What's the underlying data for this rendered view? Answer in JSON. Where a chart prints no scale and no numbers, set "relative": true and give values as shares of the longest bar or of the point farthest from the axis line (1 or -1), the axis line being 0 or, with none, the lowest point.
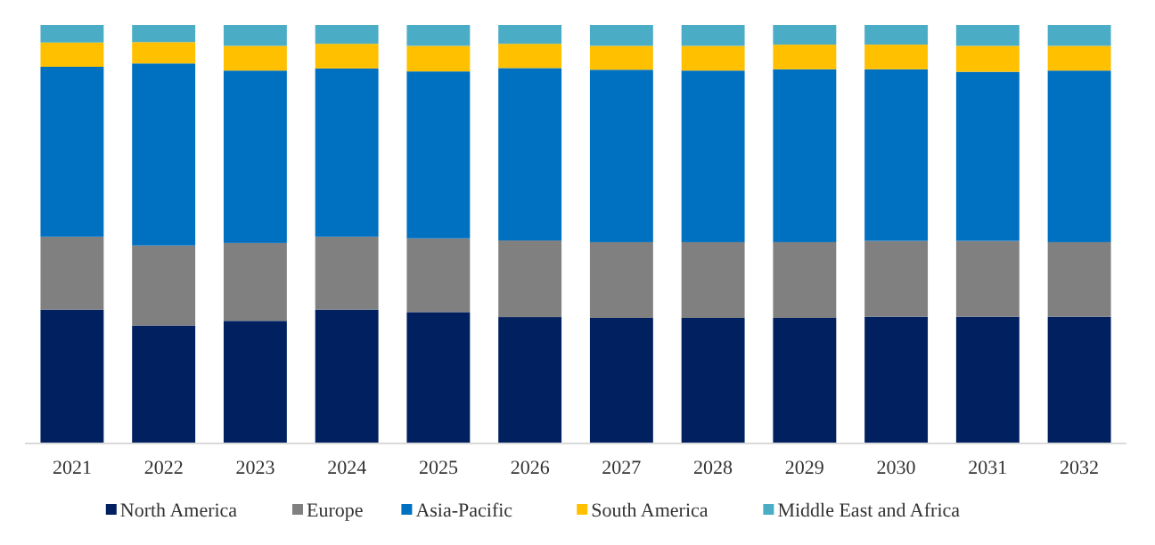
{
  "chart_data": {
    "type": "bar",
    "stacked": true,
    "relative": true,
    "legend": "bottom",
    "categories": [
      "2021",
      "2022",
      "2023",
      "2024",
      "2025",
      "2026",
      "2027",
      "2028",
      "2029",
      "2030",
      "2031",
      "2032"
    ],
    "series": [
      {
        "name": "North America",
        "color": "#002060",
        "values": [
          0.32,
          0.282,
          0.293,
          0.32,
          0.314,
          0.302,
          0.3,
          0.3,
          0.3,
          0.303,
          0.303,
          0.303
        ]
      },
      {
        "name": "Europe",
        "color": "#808080",
        "values": [
          0.174,
          0.191,
          0.186,
          0.174,
          0.176,
          0.183,
          0.181,
          0.181,
          0.181,
          0.181,
          0.181,
          0.178
        ]
      },
      {
        "name": "Asia-Pacific",
        "color": "#0070c0",
        "values": [
          0.406,
          0.435,
          0.412,
          0.402,
          0.399,
          0.412,
          0.412,
          0.41,
          0.413,
          0.41,
          0.404,
          0.41
        ]
      },
      {
        "name": "South America",
        "color": "#ffc000",
        "values": [
          0.058,
          0.051,
          0.059,
          0.059,
          0.061,
          0.058,
          0.057,
          0.059,
          0.059,
          0.059,
          0.062,
          0.059
        ]
      },
      {
        "name": "Middle East and Africa",
        "color": "#4bacc6",
        "values": [
          0.042,
          0.041,
          0.05,
          0.045,
          0.05,
          0.045,
          0.05,
          0.05,
          0.047,
          0.047,
          0.05,
          0.05
        ]
      }
    ]
  }
}
